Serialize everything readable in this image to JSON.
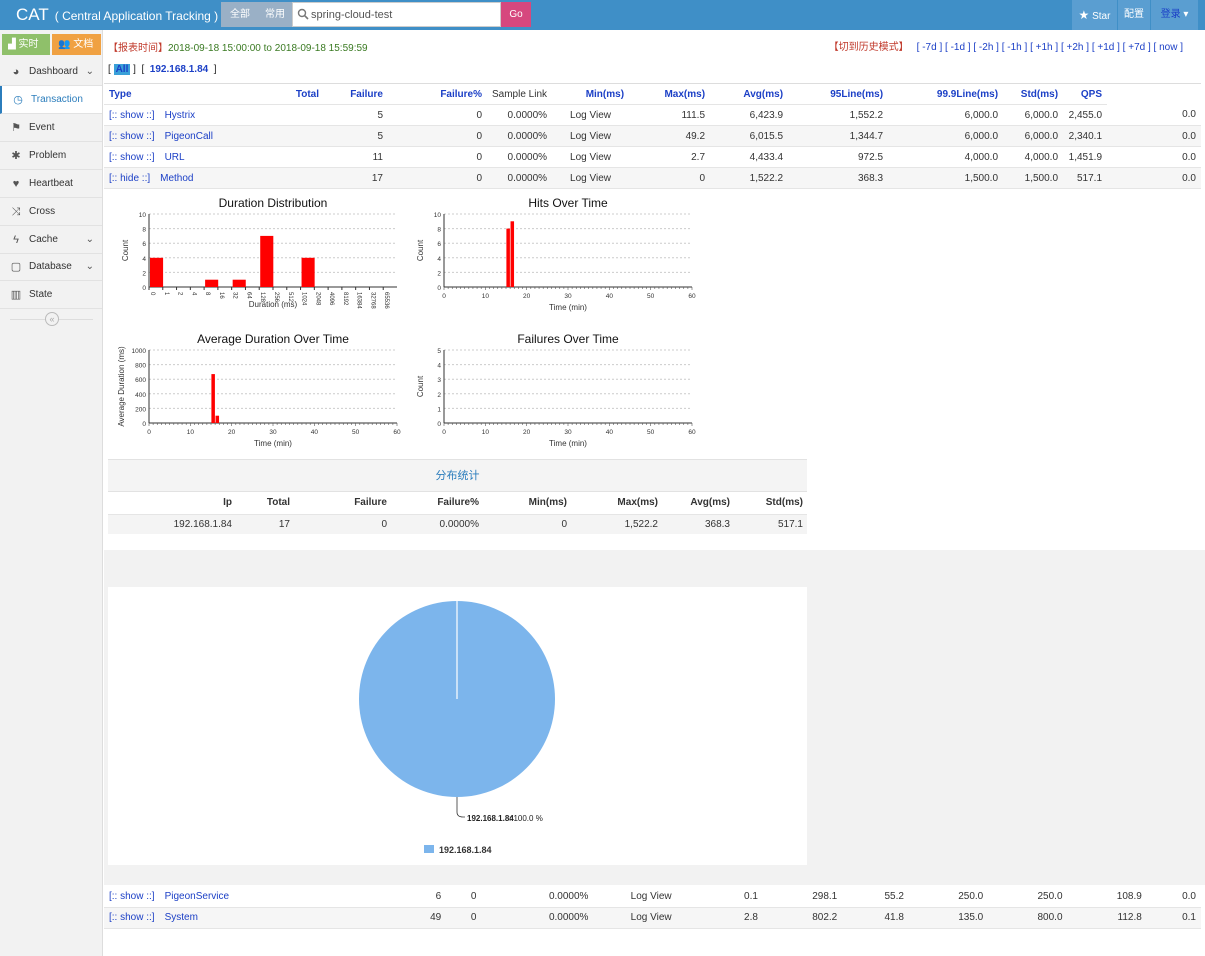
{
  "topbar": {
    "brand": "CAT",
    "brand_sub": "( Central Application Tracking )",
    "seg_all": "全部",
    "seg_common": "常用",
    "search_value": "spring-cloud-test",
    "go": "Go",
    "star": "Star",
    "config": "配置",
    "login": "登录"
  },
  "sidebar": {
    "realtime": "实时",
    "docs": "文档",
    "items": [
      {
        "label": "Dashboard",
        "icon": "dashboard-icon",
        "chevron": true
      },
      {
        "label": "Transaction",
        "icon": "clock-icon",
        "chevron": false
      },
      {
        "label": "Event",
        "icon": "flag-icon",
        "chevron": false
      },
      {
        "label": "Problem",
        "icon": "bug-icon",
        "chevron": false
      },
      {
        "label": "Heartbeat",
        "icon": "heart-icon",
        "chevron": false
      },
      {
        "label": "Cross",
        "icon": "shuffle-icon",
        "chevron": false
      },
      {
        "label": "Cache",
        "icon": "bolt-icon",
        "chevron": true
      },
      {
        "label": "Database",
        "icon": "database-icon",
        "chevron": true
      },
      {
        "label": "State",
        "icon": "bar-chart-icon",
        "chevron": false
      }
    ]
  },
  "report": {
    "time_label": "【报表时间】",
    "time_value": "2018-09-18 15:00:00 to 2018-09-18 15:59:59",
    "history_switch": "【切到历史模式】",
    "history_links": [
      "[ -7d ]",
      "[ -1d ]",
      "[ -2h ]",
      "[ -1h ]",
      "[ +1h ]",
      "[ +2h ]",
      "[ +1d ]",
      "[ +7d ]",
      "[ now ]"
    ]
  },
  "ip_selector": {
    "all": "All",
    "ip": "192.168.1.84"
  },
  "table": {
    "headers": [
      "Type",
      "Total",
      "Failure",
      "Failure%",
      "Sample Link",
      "Min(ms)",
      "Max(ms)",
      "Avg(ms)",
      "95Line(ms)",
      "99.9Line(ms)",
      "Std(ms)",
      "QPS"
    ],
    "rows": [
      {
        "toggle": "[:: show ::]",
        "type": "Hystrix",
        "total": "5",
        "failure": "0",
        "failure_pct": "0.0000%",
        "link": "Log View",
        "min": "111.5",
        "max": "6,423.9",
        "avg": "1,552.2",
        "l95": "6,000.0",
        "l999": "6,000.0",
        "std": "2,455.0",
        "qps": "0.0"
      },
      {
        "toggle": "[:: show ::]",
        "type": "PigeonCall",
        "total": "5",
        "failure": "0",
        "failure_pct": "0.0000%",
        "link": "Log View",
        "min": "49.2",
        "max": "6,015.5",
        "avg": "1,344.7",
        "l95": "6,000.0",
        "l999": "6,000.0",
        "std": "2,340.1",
        "qps": "0.0"
      },
      {
        "toggle": "[:: show ::]",
        "type": "URL",
        "total": "11",
        "failure": "0",
        "failure_pct": "0.0000%",
        "link": "Log View",
        "min": "2.7",
        "max": "4,433.4",
        "avg": "972.5",
        "l95": "4,000.0",
        "l999": "4,000.0",
        "std": "1,451.9",
        "qps": "0.0"
      },
      {
        "toggle": "[:: hide ::]",
        "type": "Method",
        "total": "17",
        "failure": "0",
        "failure_pct": "0.0000%",
        "link": "Log View",
        "min": "0",
        "max": "1,522.2",
        "avg": "368.3",
        "l95": "1,500.0",
        "l999": "1,500.0",
        "std": "517.1",
        "qps": "0.0"
      }
    ],
    "bottom_rows": [
      {
        "toggle": "[:: show ::]",
        "type": "PigeonService",
        "total": "6",
        "failure": "0",
        "failure_pct": "0.0000%",
        "link": "Log View",
        "min": "0.1",
        "max": "298.1",
        "avg": "55.2",
        "l95": "250.0",
        "l999": "250.0",
        "std": "108.9",
        "qps": "0.0"
      },
      {
        "toggle": "[:: show ::]",
        "type": "System",
        "total": "49",
        "failure": "0",
        "failure_pct": "0.0000%",
        "link": "Log View",
        "min": "2.8",
        "max": "802.2",
        "avg": "41.8",
        "l95": "135.0",
        "l999": "800.0",
        "std": "112.8",
        "qps": "0.1"
      }
    ]
  },
  "distribution": {
    "title": "分布统计",
    "headers": [
      "Ip",
      "Total",
      "Failure",
      "Failure%",
      "Min(ms)",
      "Max(ms)",
      "Avg(ms)",
      "Std(ms)"
    ],
    "row": [
      "192.168.1.84",
      "17",
      "0",
      "0.0000%",
      "0",
      "1,522.2",
      "368.3",
      "517.1"
    ]
  },
  "chart_data": [
    {
      "type": "bar",
      "title": "Duration Distribution",
      "xlabel": "Duration (ms)",
      "ylabel": "Count",
      "categories": [
        "0",
        "1",
        "2",
        "4",
        "8",
        "16",
        "32",
        "64",
        "128",
        "256",
        "512",
        "1024",
        "2048",
        "4096",
        "8192",
        "16384",
        "32768",
        "65536"
      ],
      "values": [
        4,
        0,
        0,
        0,
        1,
        0,
        1,
        0,
        7,
        0,
        0,
        4,
        0,
        0,
        0,
        0,
        0,
        0
      ],
      "ylim": [
        0,
        10
      ],
      "yticks": [
        "0",
        "2",
        "4",
        "6",
        "8",
        "10"
      ],
      "color": "#ff0000",
      "grid": true
    },
    {
      "type": "bar",
      "title": "Hits Over Time",
      "xlabel": "Time (min)",
      "ylabel": "Count",
      "x": [
        15,
        16
      ],
      "values": [
        8,
        9
      ],
      "xlim": [
        0,
        60
      ],
      "xticks": [
        "0",
        "10",
        "20",
        "30",
        "40",
        "50",
        "60"
      ],
      "ylim": [
        0,
        10
      ],
      "yticks": [
        "0",
        "2",
        "4",
        "6",
        "8",
        "10"
      ],
      "color": "#ff0000",
      "grid": true
    },
    {
      "type": "bar",
      "title": "Average Duration Over Time",
      "xlabel": "Time (min)",
      "ylabel": "Average Duration (ms)",
      "x": [
        15,
        16
      ],
      "values": [
        670,
        100
      ],
      "xlim": [
        0,
        60
      ],
      "xticks": [
        "0",
        "10",
        "20",
        "30",
        "40",
        "50",
        "60"
      ],
      "ylim": [
        0,
        1000
      ],
      "yticks": [
        "0",
        "200",
        "400",
        "600",
        "800",
        "1000"
      ],
      "color": "#ff0000",
      "grid": true
    },
    {
      "type": "bar",
      "title": "Failures Over Time",
      "xlabel": "Time (min)",
      "ylabel": "Count",
      "x": [],
      "values": [],
      "xlim": [
        0,
        60
      ],
      "xticks": [
        "0",
        "10",
        "20",
        "30",
        "40",
        "50",
        "60"
      ],
      "ylim": [
        0,
        5
      ],
      "yticks": [
        "0",
        "1",
        "2",
        "3",
        "4",
        "5"
      ],
      "color": "#ff0000",
      "grid": true
    },
    {
      "type": "pie",
      "slices": [
        {
          "name": "192.168.1.84",
          "value": 100.0
        }
      ],
      "label_name": "192.168.1.84",
      "label_value": ": 100.0 %",
      "legend": "192.168.1.84",
      "color": "#7cb5ec"
    }
  ]
}
